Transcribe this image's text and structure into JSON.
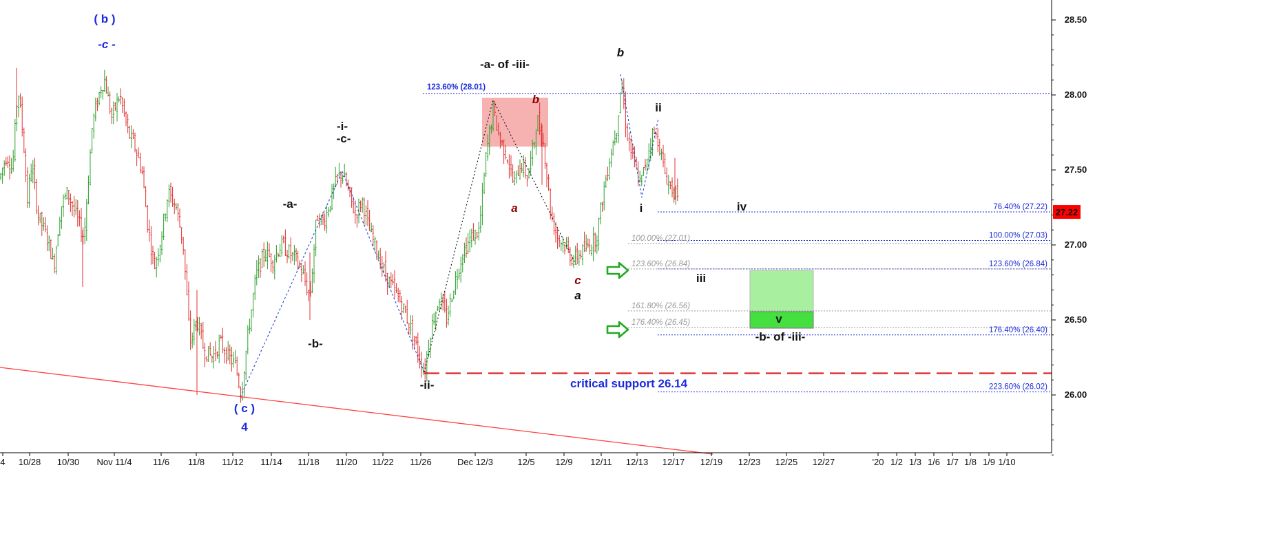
{
  "chart_data": {
    "type": "candlestick",
    "price_axis": {
      "ylim": [
        25.5,
        28.62
      ],
      "ticks": [
        "26.00",
        "26.50",
        "27.00",
        "27.50",
        "28.00",
        "28.50"
      ],
      "last_price": "27.22",
      "last_price_color": "#ff0000"
    },
    "date_axis": {
      "ticks": [
        "4",
        "10/28",
        "10/30",
        "Nov 11/4",
        "11/6",
        "11/8",
        "11/12",
        "11/14",
        "11/18",
        "11/20",
        "11/22",
        "11/26",
        "Dec 12/3",
        "12/5",
        "12/9",
        "12/11",
        "12/13",
        "12/17",
        "12/19",
        "12/23",
        "12/25",
        "12/27",
        "'20",
        "1/2",
        "1/3",
        "1/6",
        "1/7",
        "1/8",
        "1/9",
        "1/10"
      ]
    },
    "colors": {
      "up": "#2ca02c",
      "down": "#e03030",
      "fib_blue": "#1a2adf",
      "fib_gray": "#999999",
      "support": "#e02020",
      "trendline": "#ff4040"
    },
    "path_points": [
      [
        0,
        27.45
      ],
      [
        6,
        27.55
      ],
      [
        10,
        27.6
      ],
      [
        18,
        27.5
      ],
      [
        26,
        28.05
      ],
      [
        34,
        27.7
      ],
      [
        40,
        27.3
      ],
      [
        46,
        27.55
      ],
      [
        55,
        27.2
      ],
      [
        64,
        27.1
      ],
      [
        72,
        27.0
      ],
      [
        78,
        26.85
      ],
      [
        88,
        27.25
      ],
      [
        98,
        27.35
      ],
      [
        110,
        27.2
      ],
      [
        122,
        27.05
      ],
      [
        134,
        27.8
      ],
      [
        146,
        28.05
      ],
      [
        152,
        28.1
      ],
      [
        162,
        27.85
      ],
      [
        174,
        28.0
      ],
      [
        186,
        27.75
      ],
      [
        196,
        27.65
      ],
      [
        206,
        27.5
      ],
      [
        214,
        27.15
      ],
      [
        224,
        26.85
      ],
      [
        234,
        27.05
      ],
      [
        244,
        27.35
      ],
      [
        256,
        27.25
      ],
      [
        266,
        27.0
      ],
      [
        276,
        26.35
      ],
      [
        286,
        26.5
      ],
      [
        296,
        26.3
      ],
      [
        308,
        26.25
      ],
      [
        320,
        26.35
      ],
      [
        332,
        26.25
      ],
      [
        342,
        26.2
      ],
      [
        350,
        26.0
      ],
      [
        360,
        26.4
      ],
      [
        372,
        26.8
      ],
      [
        384,
        26.95
      ],
      [
        396,
        26.9
      ],
      [
        408,
        27.0
      ],
      [
        420,
        26.95
      ],
      [
        430,
        26.9
      ],
      [
        440,
        26.8
      ],
      [
        450,
        26.65
      ],
      [
        460,
        27.2
      ],
      [
        470,
        27.15
      ],
      [
        480,
        27.3
      ],
      [
        490,
        27.45
      ],
      [
        497,
        27.48
      ],
      [
        506,
        27.35
      ],
      [
        516,
        27.2
      ],
      [
        526,
        27.3
      ],
      [
        536,
        27.1
      ],
      [
        548,
        26.95
      ],
      [
        560,
        26.8
      ],
      [
        572,
        26.7
      ],
      [
        584,
        26.6
      ],
      [
        596,
        26.45
      ],
      [
        606,
        26.3
      ],
      [
        616,
        26.15
      ],
      [
        626,
        26.45
      ],
      [
        638,
        26.65
      ],
      [
        648,
        26.5
      ],
      [
        660,
        26.75
      ],
      [
        672,
        26.95
      ],
      [
        684,
        27.05
      ],
      [
        696,
        27.1
      ],
      [
        706,
        27.6
      ],
      [
        716,
        27.9
      ],
      [
        726,
        27.7
      ],
      [
        736,
        27.6
      ],
      [
        746,
        27.4
      ],
      [
        756,
        27.55
      ],
      [
        766,
        27.45
      ],
      [
        776,
        27.7
      ],
      [
        780,
        27.85
      ],
      [
        790,
        27.65
      ],
      [
        800,
        27.2
      ],
      [
        810,
        27.05
      ],
      [
        820,
        27.0
      ],
      [
        832,
        26.9
      ],
      [
        844,
        26.95
      ],
      [
        856,
        27.0
      ],
      [
        866,
        27.05
      ],
      [
        876,
        27.35
      ],
      [
        886,
        27.6
      ],
      [
        896,
        27.8
      ],
      [
        902,
        28.1
      ],
      [
        910,
        27.75
      ],
      [
        920,
        27.55
      ],
      [
        930,
        27.4
      ],
      [
        940,
        27.6
      ],
      [
        948,
        27.75
      ],
      [
        956,
        27.7
      ],
      [
        964,
        27.5
      ],
      [
        972,
        27.4
      ],
      [
        980,
        27.35
      ],
      [
        986,
        27.25
      ]
    ],
    "fib_right": [
      {
        "text": "76.40% (27.22)",
        "y": 27.22
      },
      {
        "text": "100.00% (27.03)",
        "y": 27.03
      },
      {
        "text": "123.60% (26.84)",
        "y": 26.84
      },
      {
        "text": "176.40% (26.40)",
        "y": 26.4
      },
      {
        "text": "223.60% (26.02)",
        "y": 26.02
      }
    ],
    "fib_gray": [
      {
        "text": "100.00% (27.01)",
        "y": 27.01
      },
      {
        "text": "123.60% (26.84)",
        "y": 26.84
      },
      {
        "text": "161.80% (26.56)",
        "y": 26.56
      },
      {
        "text": "176.40% (26.45)",
        "y": 26.45
      }
    ],
    "fib_top": {
      "text": "123.60% (28.01)",
      "y": 28.01
    },
    "support": {
      "text": "critical support 26.14",
      "y": 26.14
    },
    "wave_labels": [
      {
        "text": "( b )",
        "color": "#1a2adf",
        "style": "normal"
      },
      {
        "text": "-c -",
        "color": "#1a2adf",
        "style": "italic"
      },
      {
        "text": "-a- of -iii-",
        "color": "#111111",
        "style": "normal"
      },
      {
        "text": "b",
        "color": "#111111",
        "style": "italic"
      },
      {
        "text": "b",
        "color": "#8b0000",
        "style": "italic"
      },
      {
        "text": "ii",
        "color": "#111111",
        "style": "normal"
      },
      {
        "text": "-i-",
        "color": "#111111",
        "style": "normal"
      },
      {
        "text": "-c-",
        "color": "#111111",
        "style": "normal"
      },
      {
        "text": "-a-",
        "color": "#111111",
        "style": "normal"
      },
      {
        "text": "a",
        "color": "#8b0000",
        "style": "italic"
      },
      {
        "text": "i",
        "color": "#111111",
        "style": "normal"
      },
      {
        "text": "iv",
        "color": "#111111",
        "style": "normal"
      },
      {
        "text": "iii",
        "color": "#111111",
        "style": "normal"
      },
      {
        "text": "c",
        "color": "#8b0000",
        "style": "italic"
      },
      {
        "text": "a",
        "color": "#111111",
        "style": "italic"
      },
      {
        "text": "-b-",
        "color": "#111111",
        "style": "normal"
      },
      {
        "text": "-ii-",
        "color": "#111111",
        "style": "normal"
      },
      {
        "text": "( c )",
        "color": "#1a2adf",
        "style": "normal"
      },
      {
        "text": "4",
        "color": "#1a2adf",
        "style": "normal"
      },
      {
        "text": "v",
        "color": "#111111",
        "style": "normal"
      },
      {
        "text": "-b- of -iii-",
        "color": "#111111",
        "style": "normal"
      }
    ]
  }
}
